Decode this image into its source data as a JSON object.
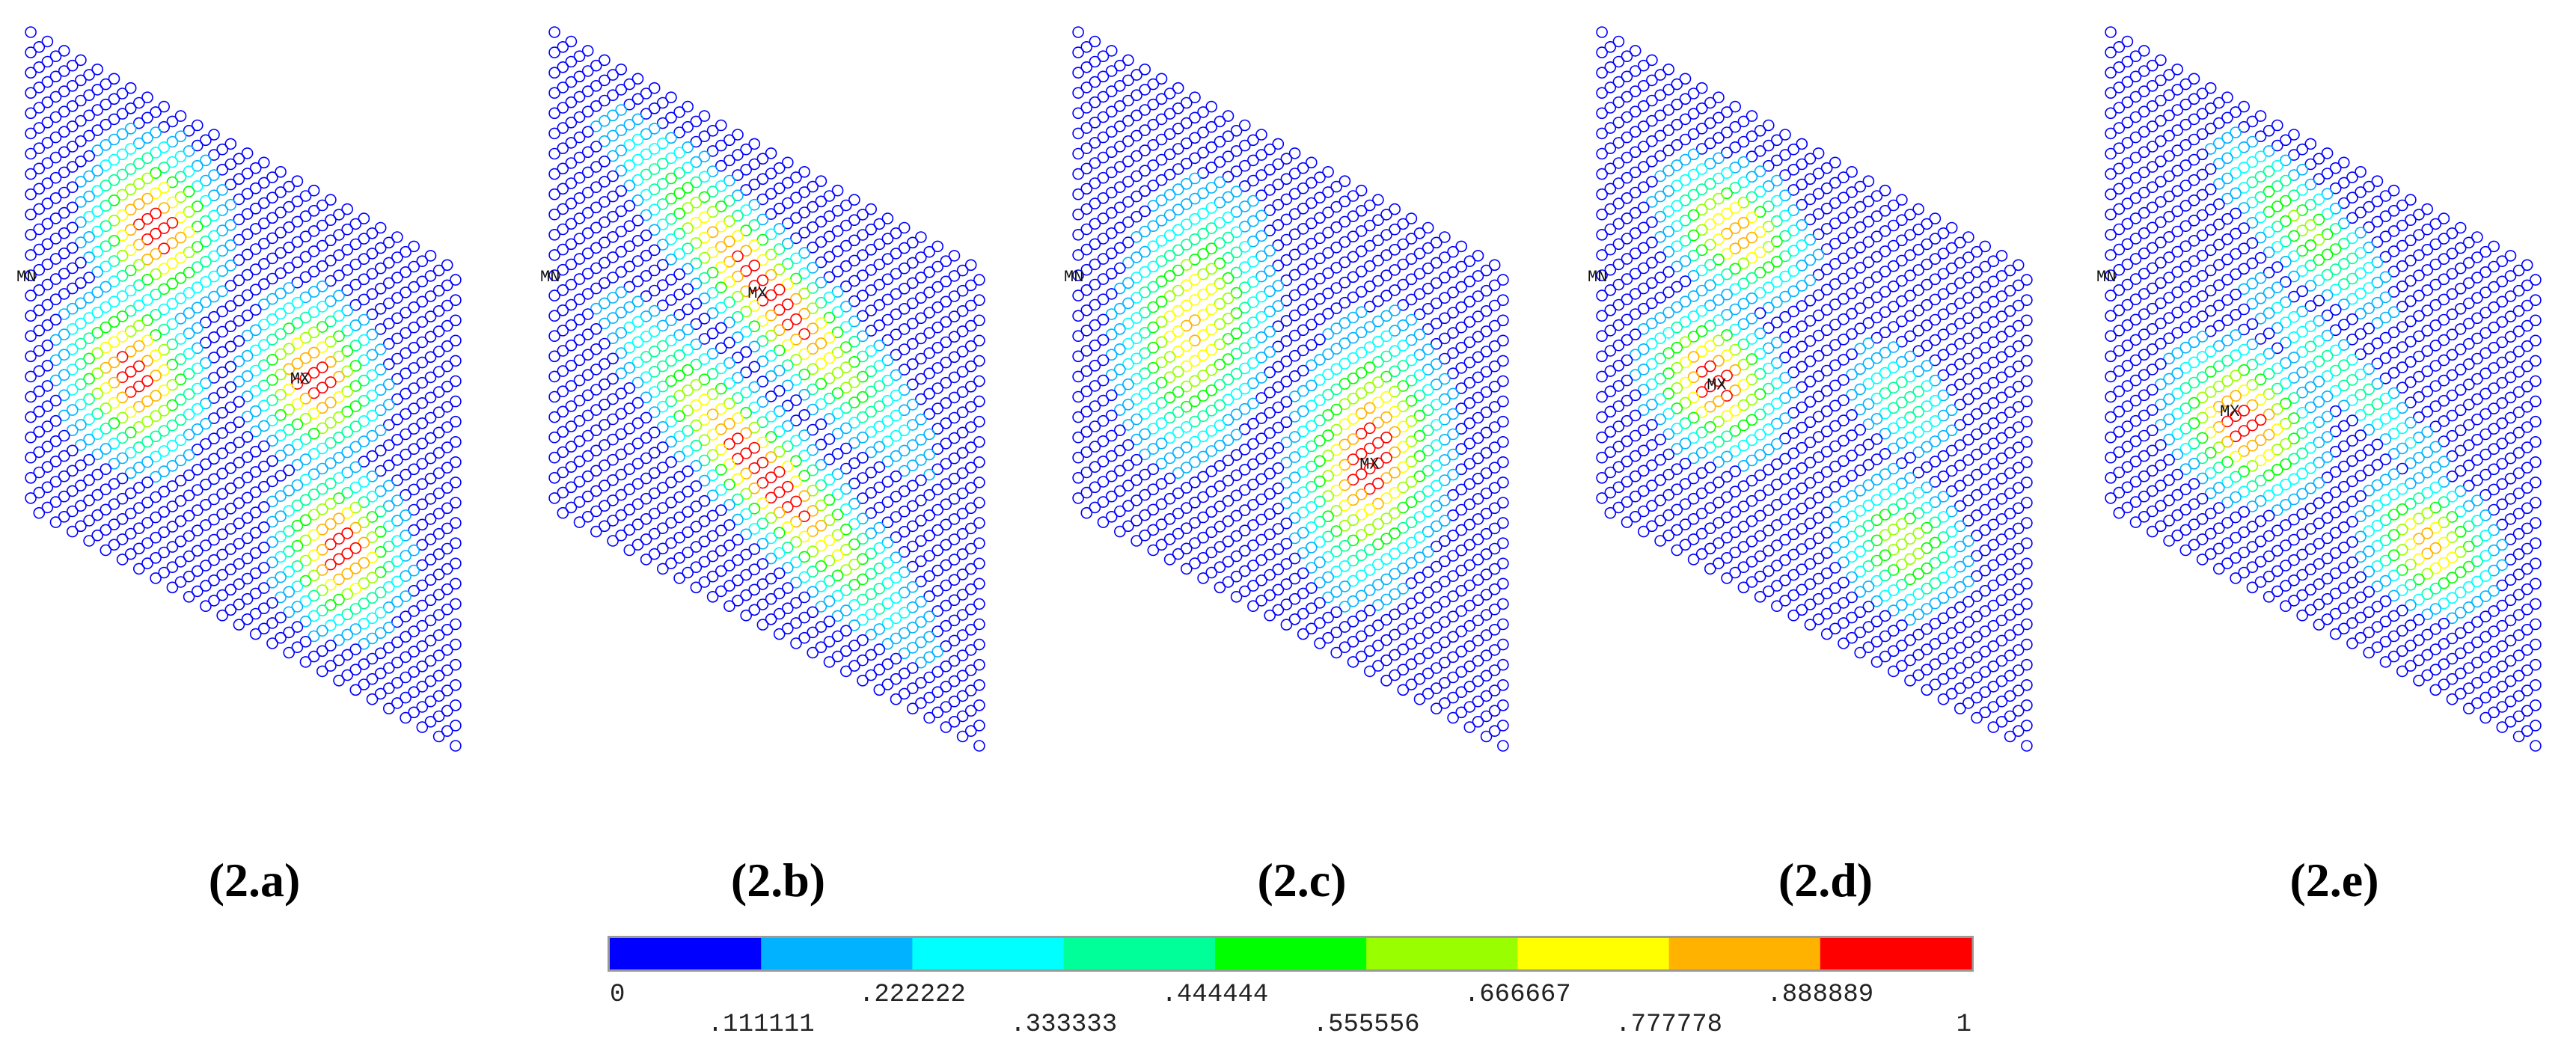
{
  "figure": {
    "panels": [
      {
        "caption": "(2.a)",
        "mx": "MX",
        "mn": "MN",
        "lobes": [
          {
            "u": 0.3,
            "v": 0.27,
            "r1": 0.2,
            "r2": 0.14,
            "ang": -60,
            "peak": 1.0
          },
          {
            "u": 0.66,
            "v": 0.4,
            "r1": 0.19,
            "r2": 0.13,
            "ang": -60,
            "peak": 1.0
          },
          {
            "u": 0.25,
            "v": 0.6,
            "r1": 0.2,
            "r2": 0.14,
            "ang": -60,
            "peak": 1.0
          },
          {
            "u": 0.72,
            "v": 0.72,
            "r1": 0.19,
            "r2": 0.13,
            "ang": -60,
            "peak": 1.0
          }
        ],
        "mx_at": {
          "u": 0.63,
          "v": 0.41
        }
      },
      {
        "caption": "(2.b)",
        "mx": "MX",
        "mn": "MN",
        "lobes": [
          {
            "u": 0.5,
            "v": 0.3,
            "r1": 0.36,
            "r2": 0.13,
            "ang": 25,
            "peak": 1.0
          },
          {
            "u": 0.5,
            "v": 0.68,
            "r1": 0.36,
            "r2": 0.13,
            "ang": 25,
            "peak": 1.0
          }
        ],
        "mx_at": {
          "u": 0.48,
          "v": 0.31
        }
      },
      {
        "caption": "(2.c)",
        "mx": "MX",
        "mn": "MN",
        "lobes": [
          {
            "u": 0.28,
            "v": 0.48,
            "r1": 0.32,
            "r2": 0.15,
            "ang": -72,
            "peak": 0.8
          },
          {
            "u": 0.68,
            "v": 0.55,
            "r1": 0.3,
            "r2": 0.15,
            "ang": -72,
            "peak": 1.0
          }
        ],
        "mx_at": {
          "u": 0.68,
          "v": 0.56
        }
      },
      {
        "caption": "(2.d)",
        "mx": "MX",
        "mn": "MN",
        "lobes": [
          {
            "u": 0.32,
            "v": 0.27,
            "r1": 0.18,
            "r2": 0.13,
            "ang": -30,
            "peak": 0.85
          },
          {
            "u": 0.7,
            "v": 0.42,
            "r1": 0.15,
            "r2": 0.12,
            "ang": -30,
            "peak": 0.4
          },
          {
            "u": 0.27,
            "v": 0.6,
            "r1": 0.18,
            "r2": 0.13,
            "ang": -45,
            "peak": 1.0
          },
          {
            "u": 0.7,
            "v": 0.72,
            "r1": 0.18,
            "r2": 0.13,
            "ang": -45,
            "peak": 0.65
          }
        ],
        "mx_at": {
          "u": 0.28,
          "v": 0.6
        }
      },
      {
        "caption": "(2.e)",
        "mx": "MX",
        "mn": "MN",
        "lobes": [
          {
            "u": 0.45,
            "v": 0.19,
            "r1": 0.22,
            "r2": 0.11,
            "ang": 20,
            "peak": 0.6
          },
          {
            "u": 0.55,
            "v": 0.45,
            "r1": 0.28,
            "r2": 0.08,
            "ang": 20,
            "peak": 0.4
          },
          {
            "u": 0.32,
            "v": 0.66,
            "r1": 0.19,
            "r2": 0.14,
            "ang": -40,
            "peak": 1.0
          },
          {
            "u": 0.74,
            "v": 0.7,
            "r1": 0.17,
            "r2": 0.12,
            "ang": -40,
            "peak": 0.85
          }
        ],
        "mx_at": {
          "u": 0.29,
          "v": 0.65
        }
      }
    ]
  },
  "colorbar": {
    "colors": [
      "#0000ff",
      "#00b2ff",
      "#00ffff",
      "#00ff99",
      "#00ff00",
      "#99ff00",
      "#ffff00",
      "#ffb200",
      "#ff0000"
    ],
    "ticks": [
      "0",
      ".111111",
      ".222222",
      ".333333",
      ".444444",
      ".555556",
      ".666667",
      ".777778",
      ".888889",
      "1"
    ],
    "min": 0,
    "max": 1
  }
}
